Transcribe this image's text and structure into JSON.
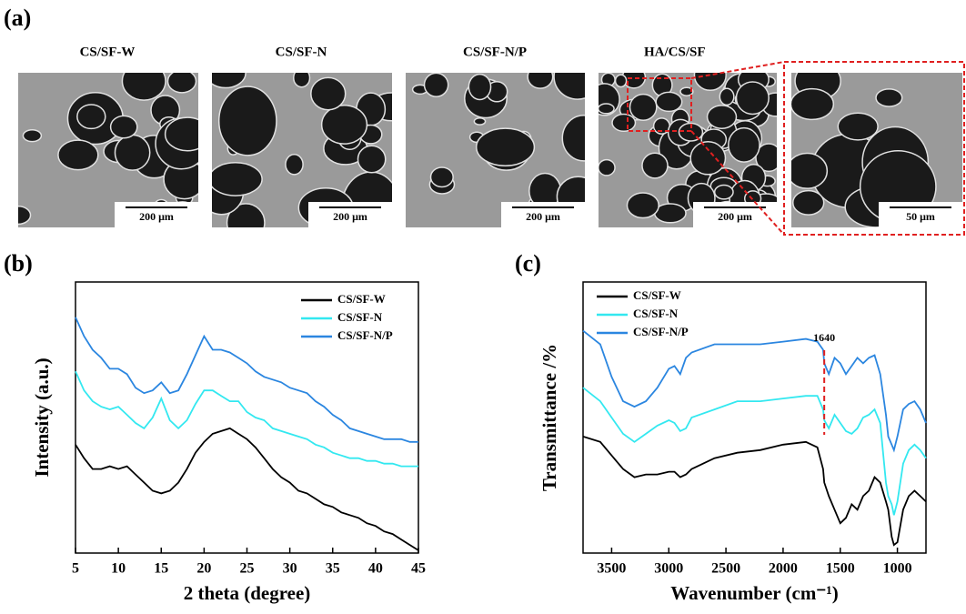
{
  "panel_a": {
    "label": "(a)",
    "images": [
      {
        "title": "CS/SF-W",
        "scale": "200 μm"
      },
      {
        "title": "CS/SF-N",
        "scale": "200 μm"
      },
      {
        "title": "CS/SF-N/P",
        "scale": "200 μm"
      },
      {
        "title": "HA/CS/SF",
        "scale": "200 μm"
      },
      {
        "scale": "50 μm"
      }
    ]
  },
  "chart_data": [
    {
      "type": "line",
      "panel_label": "(b)",
      "xlabel": "2 theta (degree)",
      "ylabel": "Intensity (a.u.)",
      "xlim": [
        5,
        45
      ],
      "xticks": [
        5,
        10,
        15,
        20,
        25,
        30,
        35,
        40,
        45
      ],
      "ylim": [
        0,
        100
      ],
      "x": [
        5,
        6,
        7,
        8,
        9,
        10,
        11,
        12,
        13,
        14,
        15,
        16,
        17,
        18,
        19,
        20,
        21,
        22,
        23,
        24,
        25,
        26,
        27,
        28,
        29,
        30,
        31,
        32,
        33,
        34,
        35,
        36,
        37,
        38,
        39,
        40,
        41,
        42,
        43,
        44,
        45
      ],
      "series": [
        {
          "name": "CS/SF-W",
          "color": "#000000",
          "values": [
            40,
            35,
            31,
            31,
            32,
            31,
            32,
            29,
            26,
            23,
            22,
            23,
            26,
            31,
            37,
            41,
            44,
            45,
            46,
            44,
            42,
            39,
            35,
            31,
            28,
            26,
            23,
            22,
            20,
            18,
            17,
            15,
            14,
            13,
            11,
            10,
            8,
            7,
            5,
            3,
            1
          ]
        },
        {
          "name": "CS/SF-N",
          "color": "#33e8f0",
          "values": [
            67,
            60,
            56,
            54,
            53,
            54,
            51,
            48,
            46,
            50,
            57,
            49,
            46,
            49,
            55,
            60,
            60,
            58,
            56,
            56,
            52,
            50,
            49,
            46,
            45,
            44,
            43,
            42,
            40,
            39,
            37,
            36,
            35,
            35,
            34,
            34,
            33,
            33,
            32,
            32,
            32
          ]
        },
        {
          "name": "CS/SF-N/P",
          "color": "#2b86e0",
          "values": [
            87,
            80,
            75,
            72,
            68,
            68,
            66,
            61,
            59,
            60,
            63,
            59,
            60,
            66,
            73,
            80,
            75,
            75,
            74,
            72,
            70,
            67,
            65,
            64,
            63,
            61,
            60,
            59,
            56,
            54,
            51,
            49,
            46,
            45,
            44,
            43,
            42,
            42,
            42,
            41,
            41
          ]
        }
      ]
    },
    {
      "type": "line",
      "panel_label": "(c)",
      "xlabel": "Wavenumber (cm⁻¹)",
      "ylabel": "Transmittance /%",
      "xlim": [
        3750,
        750
      ],
      "xticks": [
        3500,
        3000,
        2500,
        2000,
        1500,
        1000
      ],
      "ylim": [
        0,
        100
      ],
      "annotations": [
        {
          "text": "1640",
          "x": 1640
        }
      ],
      "x": [
        3750,
        3600,
        3500,
        3400,
        3300,
        3200,
        3100,
        3000,
        2950,
        2900,
        2850,
        2800,
        2600,
        2400,
        2200,
        2000,
        1800,
        1700,
        1650,
        1640,
        1600,
        1550,
        1500,
        1450,
        1400,
        1350,
        1300,
        1250,
        1200,
        1150,
        1100,
        1080,
        1050,
        1030,
        1000,
        950,
        900,
        850,
        800,
        750
      ],
      "series": [
        {
          "name": "CS/SF-W",
          "color": "#000000",
          "values": [
            43,
            41,
            36,
            31,
            28,
            29,
            29,
            30,
            30,
            28,
            29,
            31,
            35,
            37,
            38,
            40,
            41,
            39,
            31,
            26,
            21,
            16,
            11,
            13,
            18,
            16,
            21,
            23,
            28,
            26,
            19,
            16,
            6,
            3,
            4,
            16,
            21,
            23,
            21,
            19
          ]
        },
        {
          "name": "CS/SF-N",
          "color": "#33e8f0",
          "values": [
            61,
            56,
            50,
            44,
            41,
            44,
            47,
            49,
            48,
            45,
            46,
            50,
            53,
            56,
            56,
            57,
            58,
            58,
            53,
            49,
            46,
            51,
            48,
            45,
            44,
            46,
            50,
            51,
            53,
            48,
            26,
            21,
            18,
            14,
            19,
            33,
            38,
            40,
            38,
            35
          ]
        },
        {
          "name": "CS/SF-N/P",
          "color": "#2b86e0",
          "values": [
            82,
            77,
            65,
            56,
            54,
            56,
            61,
            68,
            69,
            66,
            72,
            74,
            77,
            77,
            77,
            78,
            79,
            78,
            75,
            70,
            66,
            72,
            70,
            66,
            69,
            72,
            70,
            72,
            73,
            66,
            51,
            43,
            40,
            38,
            43,
            53,
            55,
            56,
            53,
            48
          ]
        }
      ]
    }
  ]
}
